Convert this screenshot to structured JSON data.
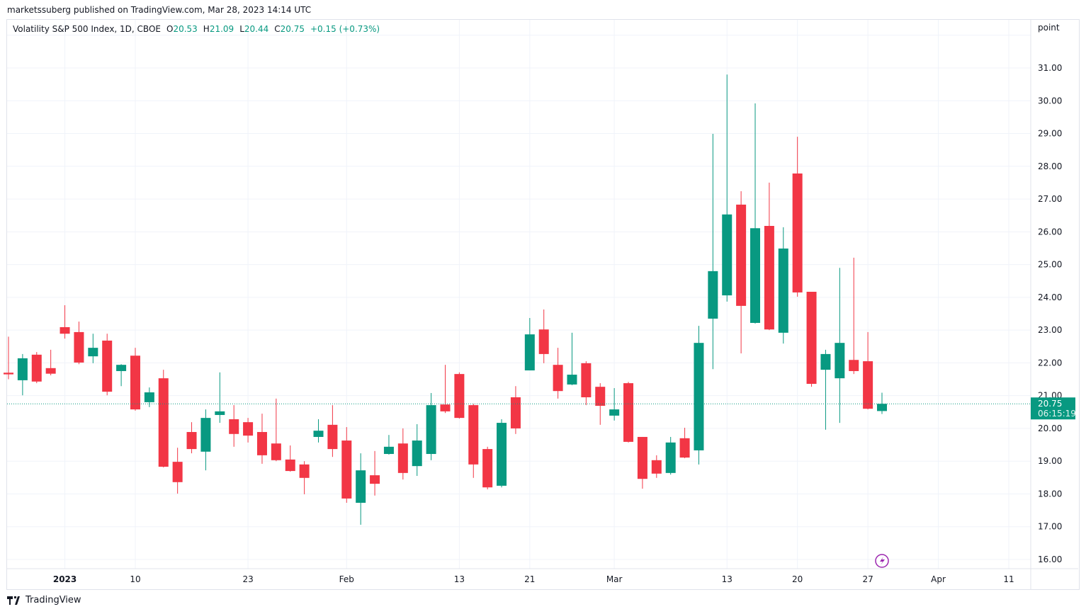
{
  "publish_line": "marketssuberg published on TradingView.com, Mar 28, 2023 14:14 UTC",
  "legend": {
    "symbol": "Volatility S&P 500 Index, 1D, CBOE",
    "o_label": "O",
    "o": "20.53",
    "h_label": "H",
    "h": "21.09",
    "l_label": "L",
    "l": "20.44",
    "c_label": "C",
    "c": "20.75",
    "change": "+0.15 (+0.73%)"
  },
  "price_unit": "point",
  "last_price": {
    "value": "20.75",
    "countdown": "06:15:19"
  },
  "footer_brand": "TradingView",
  "colors": {
    "up": "#089981",
    "down": "#f23645",
    "grid": "#f0f3fa",
    "event": "#9c27b0"
  },
  "chart_data": {
    "type": "candlestick",
    "title": "Volatility S&P 500 Index, 1D, CBOE",
    "ylim": [
      15.7,
      32.0
    ],
    "y_ticks": [
      "16.00",
      "17.00",
      "18.00",
      "19.00",
      "20.00",
      "21.00",
      "22.00",
      "23.00",
      "24.00",
      "25.00",
      "26.00",
      "27.00",
      "28.00",
      "29.00",
      "30.00",
      "31.00"
    ],
    "x_ticks": [
      {
        "label": "2023",
        "index": 4,
        "bold": true
      },
      {
        "label": "10",
        "index": 9
      },
      {
        "label": "23",
        "index": 17
      },
      {
        "label": "Feb",
        "index": 24
      },
      {
        "label": "13",
        "index": 32
      },
      {
        "label": "21",
        "index": 37
      },
      {
        "label": "Mar",
        "index": 43
      },
      {
        "label": "13",
        "index": 51
      },
      {
        "label": "20",
        "index": 56
      },
      {
        "label": "27",
        "index": 61
      },
      {
        "label": "Apr",
        "index": 66
      },
      {
        "label": "11",
        "index": 71
      }
    ],
    "x_range": [
      -0.1,
      72.6
    ],
    "candles": [
      [
        21.7,
        22.8,
        21.5,
        21.65
      ],
      [
        21.47,
        22.27,
        21.01,
        22.14
      ],
      [
        22.25,
        22.33,
        21.38,
        21.43
      ],
      [
        21.84,
        22.4,
        21.62,
        21.67
      ],
      [
        23.09,
        23.76,
        22.74,
        22.89
      ],
      [
        22.94,
        23.26,
        21.96,
        22.01
      ],
      [
        22.2,
        22.89,
        21.99,
        22.46
      ],
      [
        22.68,
        22.89,
        21.01,
        21.12
      ],
      [
        21.75,
        21.96,
        21.29,
        21.94
      ],
      [
        22.22,
        22.46,
        20.54,
        20.58
      ],
      [
        20.8,
        21.25,
        20.65,
        21.1
      ],
      [
        21.53,
        21.79,
        18.81,
        18.83
      ],
      [
        18.98,
        19.41,
        18.01,
        18.36
      ],
      [
        19.89,
        20.19,
        19.24,
        19.37
      ],
      [
        19.29,
        20.58,
        18.72,
        20.32
      ],
      [
        20.41,
        21.71,
        20.17,
        20.52
      ],
      [
        20.28,
        20.71,
        19.44,
        19.83
      ],
      [
        20.19,
        20.32,
        19.57,
        19.78
      ],
      [
        19.89,
        20.45,
        18.92,
        19.18
      ],
      [
        19.54,
        20.91,
        19.0,
        19.03
      ],
      [
        19.05,
        19.48,
        18.68,
        18.7
      ],
      [
        18.9,
        19.0,
        17.99,
        18.49
      ],
      [
        19.74,
        20.28,
        19.57,
        19.93
      ],
      [
        20.11,
        20.71,
        19.13,
        19.37
      ],
      [
        19.63,
        20.04,
        17.73,
        17.86
      ],
      [
        17.73,
        19.24,
        17.06,
        18.72
      ],
      [
        18.57,
        19.31,
        17.95,
        18.31
      ],
      [
        19.22,
        19.8,
        19.2,
        19.44
      ],
      [
        19.54,
        20.0,
        18.44,
        18.64
      ],
      [
        18.85,
        20.13,
        18.55,
        19.63
      ],
      [
        19.22,
        21.08,
        19.03,
        20.71
      ],
      [
        20.73,
        21.94,
        20.47,
        20.52
      ],
      [
        21.66,
        21.71,
        20.3,
        20.32
      ],
      [
        20.71,
        20.75,
        18.49,
        18.9
      ],
      [
        19.37,
        19.44,
        18.14,
        18.2
      ],
      [
        18.25,
        20.28,
        18.2,
        20.17
      ],
      [
        20.95,
        21.29,
        19.83,
        20.0
      ],
      [
        21.77,
        23.37,
        21.77,
        22.87
      ],
      [
        23.02,
        23.63,
        21.99,
        22.27
      ],
      [
        21.94,
        22.46,
        20.91,
        21.14
      ],
      [
        21.34,
        22.92,
        21.32,
        21.64
      ],
      [
        21.99,
        22.05,
        20.71,
        20.95
      ],
      [
        21.27,
        21.38,
        20.11,
        20.69
      ],
      [
        20.39,
        21.23,
        20.24,
        20.58
      ],
      [
        21.38,
        21.42,
        19.57,
        19.59
      ],
      [
        19.74,
        19.74,
        18.16,
        18.46
      ],
      [
        19.03,
        19.18,
        18.49,
        18.62
      ],
      [
        18.64,
        19.74,
        18.59,
        19.57
      ],
      [
        19.7,
        20.02,
        19.09,
        19.11
      ],
      [
        19.33,
        23.13,
        18.9,
        22.61
      ],
      [
        23.35,
        28.99,
        21.81,
        24.8
      ],
      [
        24.06,
        30.8,
        23.87,
        26.53
      ],
      [
        26.83,
        27.24,
        22.29,
        23.74
      ],
      [
        23.22,
        29.92,
        23.2,
        26.11
      ],
      [
        26.18,
        27.5,
        23.0,
        23.02
      ],
      [
        22.92,
        26.14,
        22.59,
        25.49
      ],
      [
        27.78,
        28.9,
        24.02,
        24.15
      ],
      [
        24.17,
        24.17,
        21.27,
        21.36
      ],
      [
        21.79,
        22.4,
        19.96,
        22.27
      ],
      [
        21.53,
        24.9,
        20.17,
        22.61
      ],
      [
        22.09,
        25.21,
        21.66,
        21.75
      ],
      [
        22.05,
        22.94,
        20.58,
        20.6
      ],
      [
        20.53,
        21.09,
        20.44,
        20.75
      ]
    ],
    "candle_format": [
      "open",
      "high",
      "low",
      "close"
    ]
  }
}
